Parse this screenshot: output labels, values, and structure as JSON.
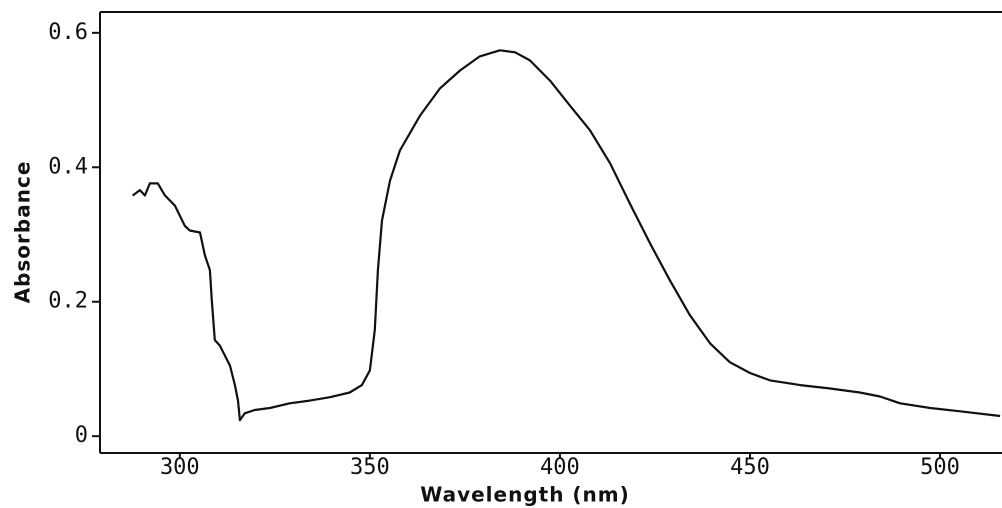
{
  "chart_data": {
    "type": "line",
    "x_label": "Wavelength (nm)",
    "y_label": "Absorbance",
    "x": [
      287.6,
      289.5,
      290.8,
      292.1,
      294.2,
      296.1,
      298.7,
      301.3,
      302.6,
      305.3,
      306.6,
      307.9,
      308.4,
      309.2,
      310.5,
      313.2,
      314.5,
      315.3,
      315.8,
      317.1,
      319.7,
      323.7,
      328.9,
      334.2,
      339.5,
      344.7,
      347.9,
      350.0,
      351.3,
      352.1,
      353.2,
      355.3,
      357.9,
      363.2,
      368.4,
      373.7,
      378.9,
      384.2,
      388.2,
      392.1,
      397.4,
      402.6,
      407.9,
      413.2,
      418.4,
      423.7,
      428.9,
      434.2,
      439.5,
      444.7,
      450.0,
      455.3,
      463.2,
      471.1,
      478.9,
      484.2,
      489.5,
      497.4,
      505.3,
      515.8
    ],
    "values": [
      0.358,
      0.366,
      0.358,
      0.376,
      0.376,
      0.358,
      0.343,
      0.313,
      0.306,
      0.303,
      0.269,
      0.247,
      0.202,
      0.143,
      0.135,
      0.105,
      0.076,
      0.053,
      0.024,
      0.034,
      0.039,
      0.042,
      0.049,
      0.053,
      0.058,
      0.065,
      0.076,
      0.098,
      0.158,
      0.247,
      0.321,
      0.38,
      0.425,
      0.477,
      0.517,
      0.544,
      0.565,
      0.574,
      0.571,
      0.559,
      0.529,
      0.492,
      0.455,
      0.406,
      0.346,
      0.287,
      0.232,
      0.18,
      0.138,
      0.11,
      0.094,
      0.083,
      0.076,
      0.071,
      0.065,
      0.059,
      0.049,
      0.042,
      0.037,
      0.03
    ],
    "color": "#111111",
    "xlim": [
      279,
      516.3
    ],
    "xticks": [
      300,
      350,
      400,
      450,
      500
    ],
    "ylim": [
      -0.025,
      0.631
    ],
    "yticks": [
      0,
      0.2,
      0.4,
      0.6
    ],
    "grid": false
  }
}
